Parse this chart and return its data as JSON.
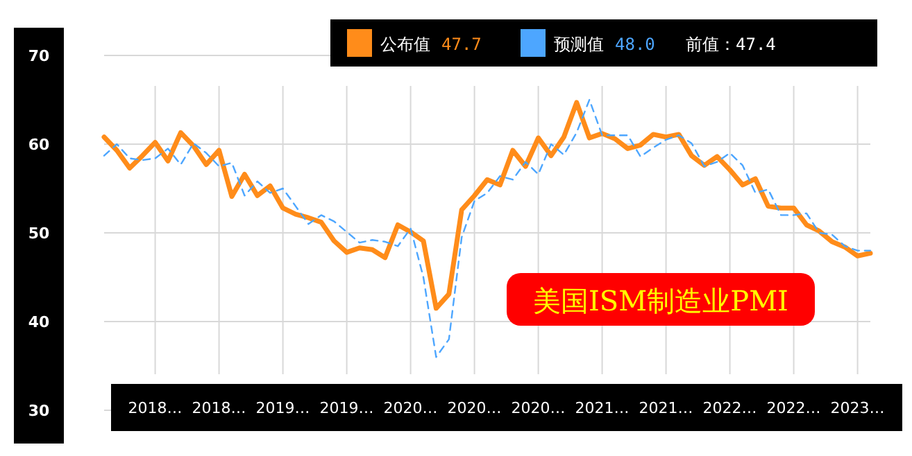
{
  "chart_data": {
    "type": "line",
    "title": "美国ISM制造业PMI",
    "categories": [
      null,
      null,
      null,
      null,
      "2018…",
      null,
      null,
      null,
      null,
      "2018…",
      null,
      null,
      null,
      null,
      "2019…",
      null,
      null,
      null,
      null,
      "2019…",
      null,
      null,
      null,
      null,
      "2020…",
      null,
      null,
      null,
      null,
      "2020…",
      null,
      null,
      null,
      null,
      "2020…",
      null,
      null,
      null,
      null,
      "2021…",
      null,
      null,
      null,
      null,
      "2021…",
      null,
      null,
      null,
      null,
      "2022…",
      null,
      null,
      null,
      null,
      "2022…",
      null,
      null,
      null,
      null,
      "2023…",
      null
    ],
    "series": [
      {
        "name": "公布值",
        "color": "#ff8c1a",
        "line_style": "solid",
        "values": [
          60.8,
          59.3,
          57.3,
          58.7,
          60.2,
          58.1,
          61.3,
          59.8,
          57.7,
          59.3,
          54.1,
          56.6,
          54.2,
          55.3,
          52.8,
          52.1,
          51.7,
          51.2,
          49.1,
          47.8,
          48.3,
          48.1,
          47.2,
          50.9,
          50.1,
          49.1,
          41.5,
          43.1,
          52.6,
          54.2,
          56.0,
          55.4,
          59.3,
          57.5,
          60.7,
          58.7,
          60.8,
          64.7,
          60.7,
          61.2,
          60.6,
          59.5,
          59.9,
          61.1,
          60.8,
          61.1,
          58.7,
          57.6,
          58.6,
          57.1,
          55.4,
          56.1,
          53.0,
          52.8,
          52.8,
          50.9,
          50.2,
          49.0,
          48.4,
          47.4,
          47.7
        ]
      },
      {
        "name": "预测值",
        "color": "#4da6ff",
        "line_style": "dashed",
        "values": [
          58.7,
          60.0,
          58.4,
          58.2,
          58.4,
          59.5,
          57.7,
          60.1,
          59.0,
          57.5,
          57.9,
          54.2,
          55.8,
          54.5,
          55.0,
          53.0,
          51.0,
          52.0,
          51.3,
          50.1,
          48.9,
          49.2,
          49.0,
          48.5,
          50.5,
          45.0,
          36.0,
          38.0,
          49.5,
          53.6,
          54.5,
          56.4,
          56.0,
          58.0,
          56.6,
          60.0,
          58.8,
          61.3,
          65.0,
          61.0,
          61.0,
          61.0,
          58.6,
          59.6,
          60.5,
          61.0,
          60.1,
          57.5,
          58.0,
          59.0,
          57.6,
          54.5,
          54.9,
          52.0,
          52.0,
          52.2,
          50.0,
          49.8,
          48.5,
          48.0,
          48.0
        ]
      }
    ],
    "annotations": [
      "47.7",
      "48.0",
      "前值：47.4"
    ],
    "ylim": [
      30,
      70
    ],
    "yticks": [
      30,
      40,
      50,
      60,
      70
    ],
    "grid": true,
    "legend": "top"
  }
}
